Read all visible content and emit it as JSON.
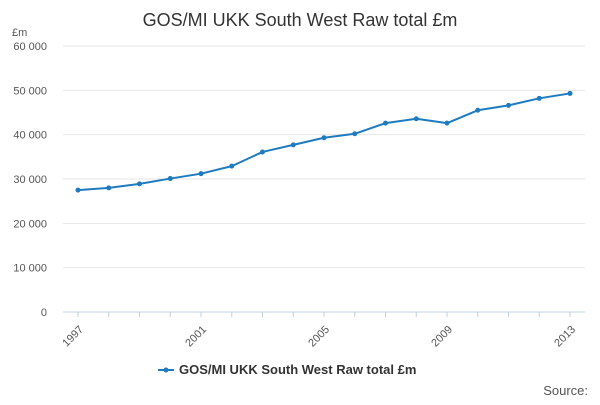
{
  "chart_data": {
    "type": "line",
    "title": "GOS/MI UKK South West Raw total £m",
    "y_unit": "£m",
    "xlabel": "",
    "ylabel": "",
    "ylim": [
      0,
      60000
    ],
    "yticks": [
      0,
      10000,
      20000,
      30000,
      40000,
      50000,
      60000
    ],
    "ytick_labels": [
      "0",
      "10 000",
      "20 000",
      "30 000",
      "40 000",
      "50 000",
      "60 000"
    ],
    "xlim": [
      1997,
      2013
    ],
    "xticks": [
      1997,
      2001,
      2005,
      2009,
      2013
    ],
    "xtick_labels": [
      "1997",
      "2001",
      "2005",
      "2009",
      "2013"
    ],
    "grid": true,
    "legend_position": "bottom",
    "series": [
      {
        "name": "GOS/MI UKK South West Raw total £m",
        "color": "#1f7bbf",
        "x": [
          1997,
          1998,
          1999,
          2000,
          2001,
          2002,
          2003,
          2004,
          2005,
          2006,
          2007,
          2008,
          2009,
          2010,
          2011,
          2012,
          2013
        ],
        "values": [
          27500,
          28000,
          28900,
          30100,
          31200,
          32900,
          36100,
          37700,
          39300,
          40200,
          42600,
          43600,
          42600,
          45500,
          46600,
          48200,
          49300
        ]
      }
    ]
  },
  "footer": {
    "source_label": "Source:"
  }
}
